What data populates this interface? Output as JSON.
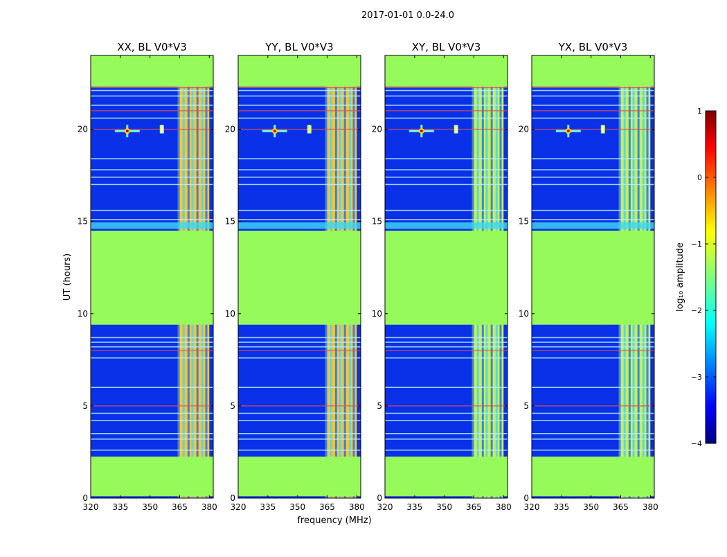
{
  "chart_data": {
    "type": "heatmap",
    "title": "2017-01-01 0.0-24.0",
    "xlabel": "frequency (MHz)",
    "ylabel": "UT (hours)",
    "xlim": [
      320,
      382
    ],
    "ylim": [
      0,
      24
    ],
    "xticks": [
      320,
      335,
      350,
      365,
      380
    ],
    "yticks": [
      0,
      5,
      10,
      15,
      20
    ],
    "panels": [
      {
        "title": "XX, BL V0*V3",
        "key": "xx"
      },
      {
        "title": "YY, BL V0*V3",
        "key": "yy"
      },
      {
        "title": "XY, BL V0*V3",
        "key": "xy"
      },
      {
        "title": "YX, BL V0*V3",
        "key": "yx"
      }
    ],
    "flagged_time_ranges": [
      [
        0.1,
        2.25
      ],
      [
        9.4,
        14.5
      ],
      [
        22.3,
        24.0
      ]
    ],
    "rfi_band_mhz": [
      364,
      380
    ],
    "rfi_sources": [
      {
        "freq": 338.5,
        "time": 19.9
      },
      {
        "freq": 356.0,
        "time": 20.0
      }
    ],
    "colorbar": {
      "label": "log₁₀ amplitude",
      "min": -4,
      "max": 1,
      "ticks": [
        1,
        0,
        -1,
        -2,
        -3,
        -4
      ],
      "tick_labels": [
        "1",
        "0",
        "−1",
        "−2",
        "−3",
        "−4"
      ]
    },
    "colors": {
      "flagged": "#96fb5a",
      "background": "#0a30e8"
    }
  }
}
